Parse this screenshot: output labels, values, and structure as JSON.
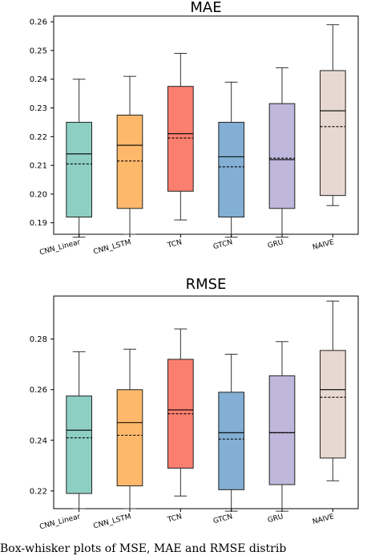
{
  "chart_data": [
    {
      "type": "box",
      "title": "MAE",
      "xlabel": "",
      "ylabel": "",
      "ylim": [
        0.186,
        0.262
      ],
      "yticks": [
        0.19,
        0.2,
        0.21,
        0.22,
        0.23,
        0.24,
        0.25,
        0.26
      ],
      "ytick_labels": [
        "0.19",
        "0.20",
        "0.21",
        "0.22",
        "0.23",
        "0.24",
        "0.25",
        "0.26"
      ],
      "categories": [
        "CNN_Linear",
        "CNN_LSTM",
        "TCN",
        "GTCN",
        "GRU",
        "NAIVE"
      ],
      "colors": [
        "#8ecfc4",
        "#fdb86b",
        "#fa7f6f",
        "#82afd3",
        "#bfb7dc",
        "#e7d9d1"
      ],
      "boxes": [
        {
          "whislo": 0.185,
          "q1": 0.192,
          "med": 0.214,
          "mean": 0.2105,
          "q3": 0.225,
          "whishi": 0.24
        },
        {
          "whislo": 0.186,
          "q1": 0.195,
          "med": 0.217,
          "mean": 0.2115,
          "q3": 0.2275,
          "whishi": 0.241
        },
        {
          "whislo": 0.191,
          "q1": 0.201,
          "med": 0.221,
          "mean": 0.2195,
          "q3": 0.2375,
          "whishi": 0.249
        },
        {
          "whislo": 0.185,
          "q1": 0.192,
          "med": 0.213,
          "mean": 0.2095,
          "q3": 0.225,
          "whishi": 0.239
        },
        {
          "whislo": 0.185,
          "q1": 0.195,
          "med": 0.212,
          "mean": 0.2125,
          "q3": 0.2315,
          "whishi": 0.244
        },
        {
          "whislo": 0.196,
          "q1": 0.1995,
          "med": 0.229,
          "mean": 0.2235,
          "q3": 0.243,
          "whishi": 0.259
        }
      ]
    },
    {
      "type": "box",
      "title": "RMSE",
      "xlabel": "",
      "ylabel": "",
      "ylim": [
        0.213,
        0.297
      ],
      "yticks": [
        0.22,
        0.24,
        0.26,
        0.28
      ],
      "ytick_labels": [
        "0.22",
        "0.24",
        "0.26",
        "0.28"
      ],
      "categories": [
        "CNN_Linear",
        "CNN_LSTM",
        "TCN",
        "GTCN",
        "GRU",
        "NAIVE"
      ],
      "colors": [
        "#8ecfc4",
        "#fdb86b",
        "#fa7f6f",
        "#82afd3",
        "#bfb7dc",
        "#e7d9d1"
      ],
      "boxes": [
        {
          "whislo": 0.213,
          "q1": 0.219,
          "med": 0.244,
          "mean": 0.241,
          "q3": 0.2575,
          "whishi": 0.275
        },
        {
          "whislo": 0.213,
          "q1": 0.222,
          "med": 0.247,
          "mean": 0.242,
          "q3": 0.26,
          "whishi": 0.276
        },
        {
          "whislo": 0.218,
          "q1": 0.229,
          "med": 0.252,
          "mean": 0.2505,
          "q3": 0.272,
          "whishi": 0.284
        },
        {
          "whislo": 0.212,
          "q1": 0.2205,
          "med": 0.243,
          "mean": 0.2405,
          "q3": 0.259,
          "whishi": 0.274
        },
        {
          "whislo": 0.212,
          "q1": 0.2225,
          "med": 0.243,
          "mean": 0.243,
          "q3": 0.2655,
          "whishi": 0.279
        },
        {
          "whislo": 0.224,
          "q1": 0.233,
          "med": 0.26,
          "mean": 0.257,
          "q3": 0.2755,
          "whishi": 0.295
        }
      ]
    }
  ],
  "caption": "Box-whisker plots of MSE, MAE and RMSE distrib"
}
